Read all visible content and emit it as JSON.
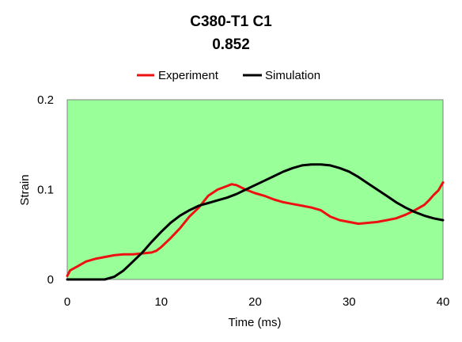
{
  "chart_data": {
    "type": "line",
    "title": "C380-T1 C1",
    "subtitle": "0.852",
    "xlabel": "Time (ms)",
    "ylabel": "Strain",
    "xlim": [
      0,
      40
    ],
    "ylim": [
      0,
      0.2
    ],
    "x_ticks": [
      0,
      10,
      20,
      30,
      40
    ],
    "x_tick_labels": [
      "0",
      "10",
      "20",
      "30",
      "40"
    ],
    "y_ticks": [
      0,
      0.1,
      0.2
    ],
    "y_tick_labels": [
      "0",
      "0.1",
      "0.2"
    ],
    "grid": false,
    "legend_position": "top",
    "plot_background": "#99ff99",
    "series": [
      {
        "name": "Experiment",
        "color": "#ee1111",
        "x": [
          0,
          0.3,
          1,
          2,
          3,
          4,
          5,
          6,
          7,
          8,
          9,
          9.5,
          10,
          11,
          12,
          13,
          14,
          15,
          16,
          17,
          17.5,
          18,
          19,
          20,
          21,
          22,
          23,
          24,
          25,
          26,
          27,
          28,
          29,
          30,
          31,
          32,
          33,
          34,
          35,
          36,
          37,
          38,
          38.5,
          39,
          39.5,
          40
        ],
        "y": [
          0.004,
          0.01,
          0.014,
          0.02,
          0.023,
          0.025,
          0.027,
          0.028,
          0.028,
          0.029,
          0.03,
          0.032,
          0.036,
          0.046,
          0.057,
          0.07,
          0.08,
          0.093,
          0.1,
          0.104,
          0.106,
          0.105,
          0.1,
          0.096,
          0.093,
          0.089,
          0.086,
          0.084,
          0.082,
          0.08,
          0.077,
          0.07,
          0.066,
          0.064,
          0.062,
          0.063,
          0.064,
          0.066,
          0.068,
          0.072,
          0.077,
          0.083,
          0.088,
          0.094,
          0.099,
          0.108
        ]
      },
      {
        "name": "Simulation",
        "color": "#000000",
        "x": [
          0,
          1,
          2,
          3,
          4,
          5,
          6,
          7,
          8,
          9,
          10,
          11,
          12,
          13,
          14,
          15,
          16,
          17,
          18,
          19,
          20,
          21,
          22,
          23,
          24,
          25,
          26,
          27,
          28,
          29,
          30,
          31,
          32,
          33,
          34,
          35,
          36,
          37,
          38,
          39,
          40
        ],
        "y": [
          0.0,
          0.0,
          0.0,
          0.0,
          0.0,
          0.003,
          0.01,
          0.02,
          0.03,
          0.042,
          0.053,
          0.063,
          0.071,
          0.077,
          0.082,
          0.085,
          0.088,
          0.091,
          0.095,
          0.1,
          0.105,
          0.11,
          0.115,
          0.12,
          0.124,
          0.127,
          0.128,
          0.128,
          0.127,
          0.124,
          0.12,
          0.114,
          0.107,
          0.1,
          0.093,
          0.086,
          0.08,
          0.075,
          0.071,
          0.068,
          0.066
        ]
      }
    ]
  }
}
